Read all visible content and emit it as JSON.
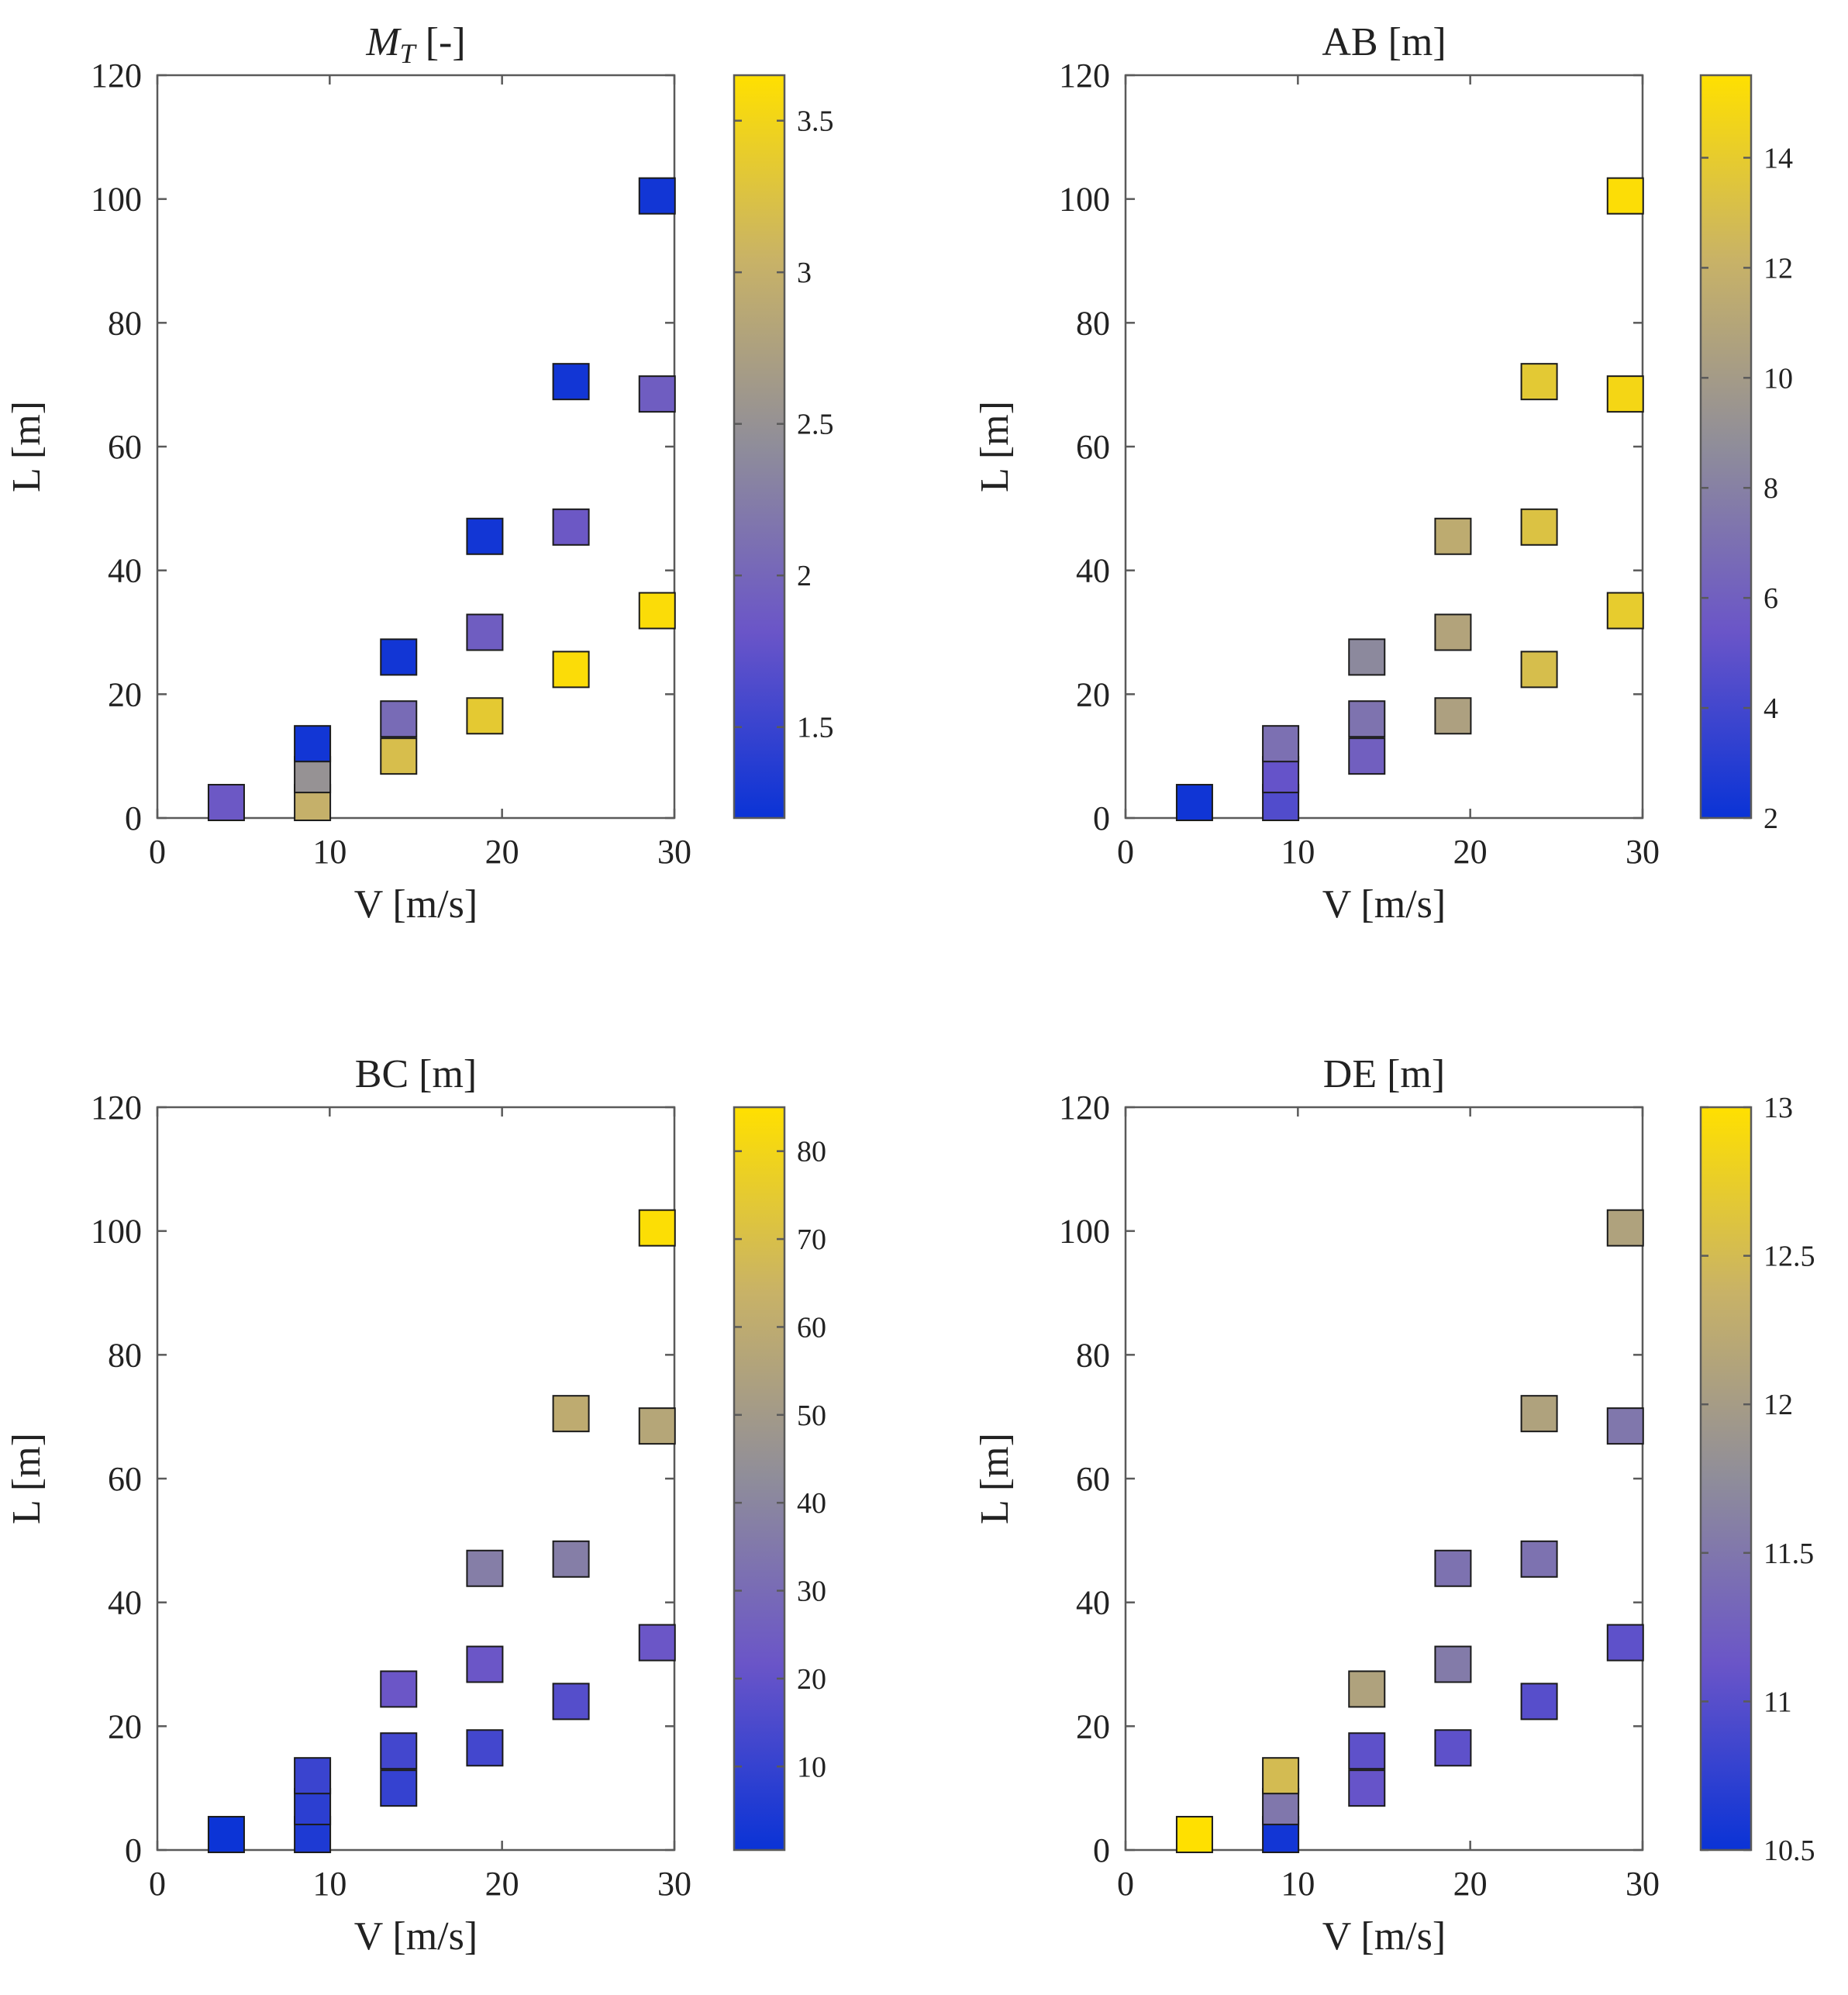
{
  "chart_data": [
    {
      "type": "scatter",
      "title": "M_T [-]",
      "title_main": "M",
      "title_sub": "T",
      "title_suffix": " [-]",
      "xlabel": "V [m/s]",
      "ylabel": "L [m]",
      "xlim": [
        0,
        30
      ],
      "ylim": [
        0,
        120
      ],
      "xticks": [
        0,
        10,
        20,
        30
      ],
      "yticks": [
        0,
        20,
        40,
        60,
        80,
        100,
        120
      ],
      "colorbar": {
        "min": 1.2,
        "max": 3.65,
        "ticks": [
          1.5,
          2,
          2.5,
          3,
          3.5
        ],
        "tick_labels": [
          "1.5",
          "2",
          "2.5",
          "3",
          "3.5"
        ]
      },
      "points": [
        {
          "x": 4,
          "y": 2.5,
          "value": 1.85
        },
        {
          "x": 9,
          "y": 2.5,
          "value": 3.0
        },
        {
          "x": 9,
          "y": 7,
          "value": 2.5
        },
        {
          "x": 9,
          "y": 12,
          "value": 1.25
        },
        {
          "x": 14,
          "y": 10,
          "value": 3.2
        },
        {
          "x": 14,
          "y": 16,
          "value": 2.05
        },
        {
          "x": 14,
          "y": 26,
          "value": 1.25
        },
        {
          "x": 19,
          "y": 16.5,
          "value": 3.35
        },
        {
          "x": 19,
          "y": 30,
          "value": 1.9
        },
        {
          "x": 19,
          "y": 45.5,
          "value": 1.25
        },
        {
          "x": 24,
          "y": 24,
          "value": 3.6
        },
        {
          "x": 24,
          "y": 47,
          "value": 1.85
        },
        {
          "x": 24,
          "y": 70.5,
          "value": 1.25
        },
        {
          "x": 29,
          "y": 33.5,
          "value": 3.6
        },
        {
          "x": 29,
          "y": 68.5,
          "value": 1.9
        },
        {
          "x": 29,
          "y": 100.5,
          "value": 1.25
        }
      ]
    },
    {
      "type": "scatter",
      "title": "AB [m]",
      "title_main": "AB [m]",
      "title_sub": "",
      "title_suffix": "",
      "xlabel": "V [m/s]",
      "ylabel": "L [m]",
      "xlim": [
        0,
        30
      ],
      "ylim": [
        0,
        120
      ],
      "xticks": [
        0,
        10,
        20,
        30
      ],
      "yticks": [
        0,
        20,
        40,
        60,
        80,
        100,
        120
      ],
      "colorbar": {
        "min": 2,
        "max": 15.5,
        "ticks": [
          2,
          4,
          6,
          8,
          10,
          12,
          14
        ],
        "tick_labels": [
          "2",
          "4",
          "6",
          "8",
          "10",
          "12",
          "14"
        ]
      },
      "points": [
        {
          "x": 4,
          "y": 2.5,
          "value": 2.2
        },
        {
          "x": 9,
          "y": 2.5,
          "value": 4.5
        },
        {
          "x": 9,
          "y": 7,
          "value": 5.2
        },
        {
          "x": 9,
          "y": 12,
          "value": 7.0
        },
        {
          "x": 14,
          "y": 10,
          "value": 6.0
        },
        {
          "x": 14,
          "y": 16,
          "value": 7.2
        },
        {
          "x": 14,
          "y": 26,
          "value": 8.5
        },
        {
          "x": 19,
          "y": 16.5,
          "value": 10.5
        },
        {
          "x": 19,
          "y": 30,
          "value": 10.8
        },
        {
          "x": 19,
          "y": 45.5,
          "value": 11.5
        },
        {
          "x": 24,
          "y": 24,
          "value": 13.0
        },
        {
          "x": 24,
          "y": 47,
          "value": 13.3
        },
        {
          "x": 24,
          "y": 70.5,
          "value": 13.8
        },
        {
          "x": 29,
          "y": 33.5,
          "value": 14.0
        },
        {
          "x": 29,
          "y": 68.5,
          "value": 14.8
        },
        {
          "x": 29,
          "y": 100.5,
          "value": 15.3
        }
      ]
    },
    {
      "type": "scatter",
      "title": "BC [m]",
      "title_main": "BC [m]",
      "title_sub": "",
      "title_suffix": "",
      "xlabel": "V [m/s]",
      "ylabel": "L [m]",
      "xlim": [
        0,
        30
      ],
      "ylim": [
        0,
        120
      ],
      "xticks": [
        0,
        10,
        20,
        30
      ],
      "yticks": [
        0,
        20,
        40,
        60,
        80,
        100,
        120
      ],
      "colorbar": {
        "min": 0.5,
        "max": 85,
        "ticks": [
          10,
          20,
          30,
          40,
          50,
          60,
          70,
          80
        ],
        "tick_labels": [
          "10",
          "20",
          "30",
          "40",
          "50",
          "60",
          "70",
          "80"
        ]
      },
      "points": [
        {
          "x": 4,
          "y": 2.5,
          "value": 1
        },
        {
          "x": 9,
          "y": 2.5,
          "value": 5
        },
        {
          "x": 9,
          "y": 7,
          "value": 8
        },
        {
          "x": 9,
          "y": 12,
          "value": 11
        },
        {
          "x": 14,
          "y": 10,
          "value": 10
        },
        {
          "x": 14,
          "y": 16,
          "value": 13
        },
        {
          "x": 14,
          "y": 26,
          "value": 22
        },
        {
          "x": 19,
          "y": 16.5,
          "value": 13
        },
        {
          "x": 19,
          "y": 30,
          "value": 22
        },
        {
          "x": 19,
          "y": 45.5,
          "value": 37
        },
        {
          "x": 24,
          "y": 24,
          "value": 17
        },
        {
          "x": 24,
          "y": 47,
          "value": 37
        },
        {
          "x": 24,
          "y": 70.5,
          "value": 60
        },
        {
          "x": 29,
          "y": 33.5,
          "value": 22
        },
        {
          "x": 29,
          "y": 68.5,
          "value": 57
        },
        {
          "x": 29,
          "y": 100.5,
          "value": 84
        }
      ]
    },
    {
      "type": "scatter",
      "title": "DE [m]",
      "title_main": "DE [m]",
      "title_sub": "",
      "title_suffix": "",
      "xlabel": "V [m/s]",
      "ylabel": "L [m]",
      "xlim": [
        0,
        30
      ],
      "ylim": [
        0,
        120
      ],
      "xticks": [
        0,
        10,
        20,
        30
      ],
      "yticks": [
        0,
        20,
        40,
        60,
        80,
        100,
        120
      ],
      "colorbar": {
        "min": 10.5,
        "max": 13,
        "ticks": [
          10.5,
          11,
          11.5,
          12,
          12.5,
          13
        ],
        "tick_labels": [
          "10.5",
          "11",
          "11.5",
          "12",
          "12.5",
          "13"
        ]
      },
      "points": [
        {
          "x": 4,
          "y": 2.5,
          "value": 13.0
        },
        {
          "x": 9,
          "y": 2.5,
          "value": 10.55
        },
        {
          "x": 9,
          "y": 7,
          "value": 11.5
        },
        {
          "x": 9,
          "y": 12,
          "value": 12.5
        },
        {
          "x": 14,
          "y": 10,
          "value": 11.1
        },
        {
          "x": 14,
          "y": 16,
          "value": 11.05
        },
        {
          "x": 14,
          "y": 26,
          "value": 12.1
        },
        {
          "x": 19,
          "y": 16.5,
          "value": 11.05
        },
        {
          "x": 19,
          "y": 30,
          "value": 11.55
        },
        {
          "x": 19,
          "y": 45.5,
          "value": 11.45
        },
        {
          "x": 24,
          "y": 24,
          "value": 11.0
        },
        {
          "x": 24,
          "y": 47,
          "value": 11.45
        },
        {
          "x": 24,
          "y": 70.5,
          "value": 12.1
        },
        {
          "x": 29,
          "y": 33.5,
          "value": 11.05
        },
        {
          "x": 29,
          "y": 68.5,
          "value": 11.5
        },
        {
          "x": 29,
          "y": 100.5,
          "value": 12.1
        }
      ]
    }
  ],
  "colormap": [
    "#0a33d6",
    "#6a55c8",
    "#8f8d9a",
    "#c8b267",
    "#ffe000"
  ]
}
